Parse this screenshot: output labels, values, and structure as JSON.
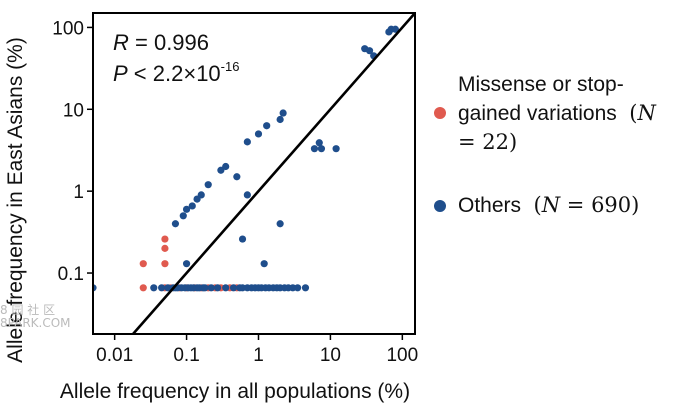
{
  "chart_data": {
    "type": "scatter",
    "xlabel": "Allele frequency in all populations (%)",
    "ylabel": "Allele frequency in East Asians (%)",
    "x_scale": "log",
    "y_scale": "log",
    "xlim": [
      0.005,
      150
    ],
    "ylim": [
      0.018,
      150
    ],
    "x_ticks": [
      {
        "v": 0.01,
        "label": "0.01"
      },
      {
        "v": 0.1,
        "label": "0.1"
      },
      {
        "v": 1,
        "label": "1"
      },
      {
        "v": 10,
        "label": "10"
      },
      {
        "v": 100,
        "label": "100"
      }
    ],
    "y_ticks": [
      {
        "v": 0.1,
        "label": "0.1"
      },
      {
        "v": 1,
        "label": "1"
      },
      {
        "v": 10,
        "label": "10"
      },
      {
        "v": 100,
        "label": "100"
      }
    ],
    "diagonal_line": true,
    "stats": {
      "r_symbol": "R",
      "r_text": " = 0.996",
      "p_symbol": "P",
      "p_text": " < 2.2×10",
      "p_exponent": "-16"
    },
    "series": [
      {
        "name": "Missense or stop-gained variations",
        "n_text": "N = 22",
        "color": "#e05a4f",
        "points": [
          [
            0.025,
            0.066
          ],
          [
            0.025,
            0.13
          ],
          [
            0.05,
            0.066
          ],
          [
            0.05,
            0.13
          ],
          [
            0.05,
            0.2
          ],
          [
            0.05,
            0.26
          ],
          [
            0.08,
            0.066
          ],
          [
            0.1,
            0.066
          ],
          [
            0.13,
            0.066
          ],
          [
            0.16,
            0.066
          ],
          [
            0.2,
            0.066
          ],
          [
            0.25,
            0.066
          ],
          [
            0.3,
            0.066
          ],
          [
            0.4,
            0.066
          ],
          [
            0.5,
            0.066
          ],
          [
            0.06,
            0.066
          ]
        ]
      },
      {
        "name": "Others",
        "n_text": "N = 690",
        "color": "#1f4e8c",
        "points": [
          [
            0.005,
            0.066
          ],
          [
            0.035,
            0.066
          ],
          [
            0.045,
            0.066
          ],
          [
            0.055,
            0.066
          ],
          [
            0.065,
            0.066
          ],
          [
            0.07,
            0.066
          ],
          [
            0.075,
            0.066
          ],
          [
            0.085,
            0.066
          ],
          [
            0.095,
            0.066
          ],
          [
            0.105,
            0.066
          ],
          [
            0.115,
            0.066
          ],
          [
            0.125,
            0.066
          ],
          [
            0.14,
            0.066
          ],
          [
            0.15,
            0.066
          ],
          [
            0.17,
            0.066
          ],
          [
            0.18,
            0.066
          ],
          [
            0.22,
            0.066
          ],
          [
            0.27,
            0.066
          ],
          [
            0.35,
            0.066
          ],
          [
            0.45,
            0.066
          ],
          [
            0.55,
            0.066
          ],
          [
            0.6,
            0.066
          ],
          [
            0.7,
            0.066
          ],
          [
            0.8,
            0.066
          ],
          [
            0.9,
            0.066
          ],
          [
            1.0,
            0.066
          ],
          [
            1.1,
            0.066
          ],
          [
            1.25,
            0.066
          ],
          [
            1.4,
            0.066
          ],
          [
            1.6,
            0.066
          ],
          [
            1.8,
            0.066
          ],
          [
            2.0,
            0.066
          ],
          [
            2.3,
            0.066
          ],
          [
            2.6,
            0.066
          ],
          [
            3.0,
            0.066
          ],
          [
            3.5,
            0.066
          ],
          [
            4.5,
            0.066
          ],
          [
            0.07,
            0.4
          ],
          [
            0.09,
            0.5
          ],
          [
            0.1,
            0.6
          ],
          [
            0.12,
            0.66
          ],
          [
            0.14,
            0.8
          ],
          [
            0.16,
            0.9
          ],
          [
            0.2,
            1.2
          ],
          [
            0.3,
            1.8
          ],
          [
            0.35,
            2.0
          ],
          [
            0.5,
            1.5
          ],
          [
            0.7,
            4.0
          ],
          [
            1.0,
            5.0
          ],
          [
            1.3,
            6.3
          ],
          [
            2.0,
            7.5
          ],
          [
            2.2,
            9.0
          ],
          [
            0.6,
            0.26
          ],
          [
            0.7,
            0.9
          ],
          [
            1.2,
            0.13
          ],
          [
            2.0,
            0.4
          ],
          [
            0.1,
            0.13
          ],
          [
            6.0,
            3.3
          ],
          [
            7.0,
            3.9
          ],
          [
            7.5,
            3.3
          ],
          [
            12,
            3.3
          ],
          [
            30,
            55
          ],
          [
            35,
            52
          ],
          [
            40,
            45
          ],
          [
            65,
            88
          ],
          [
            70,
            95
          ],
          [
            80,
            95
          ]
        ]
      }
    ]
  },
  "watermark": {
    "line1": "8 园 社 区",
    "line2": "8PARK.COM"
  }
}
